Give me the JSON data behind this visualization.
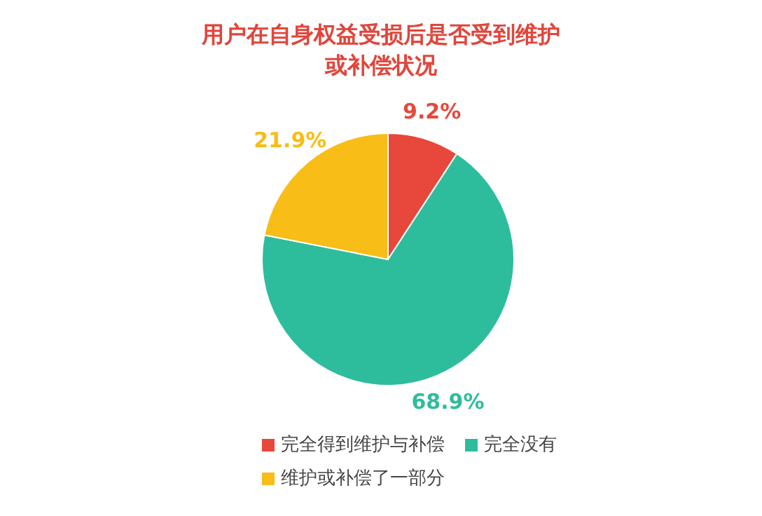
{
  "chart_data": {
    "type": "pie",
    "title": "用户在自身权益受损后是否受到维护或补偿状况",
    "categories": [
      "完全得到维护与补偿",
      "完全没有",
      "维护或补偿了一部分"
    ],
    "values": [
      9.2,
      68.9,
      21.9
    ],
    "colors": [
      "#e8473b",
      "#2ebd9c",
      "#f8bd16"
    ],
    "value_labels": [
      "9.2%",
      "68.9%",
      "21.9%"
    ],
    "legend": "bottom"
  }
}
